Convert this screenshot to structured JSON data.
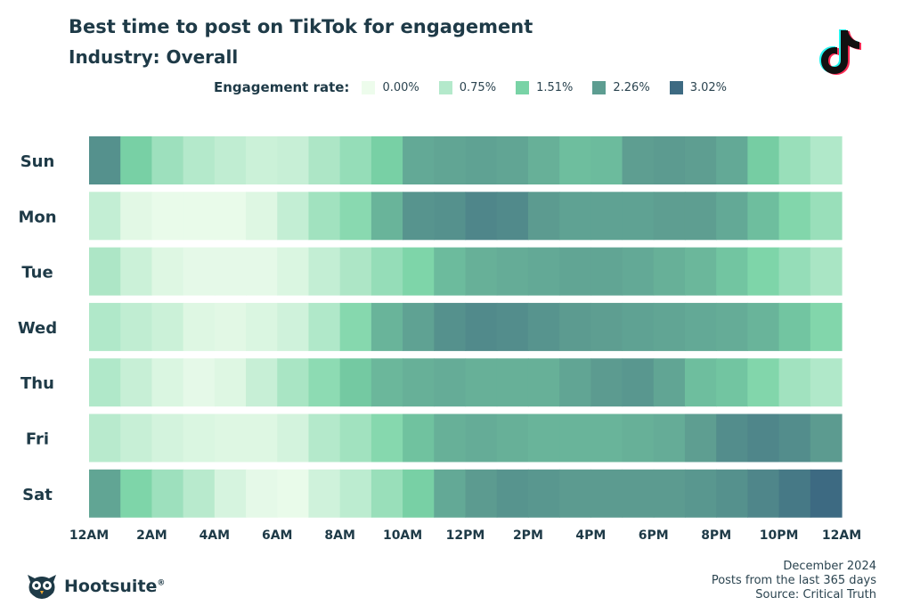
{
  "header": {
    "title": "Best time to post on TikTok for engagement",
    "subtitle": "Industry: Overall"
  },
  "legend": {
    "title": "Engagement rate:",
    "items": [
      {
        "label": "0.00%",
        "color": "#edfcec"
      },
      {
        "label": "0.75%",
        "color": "#b4e9cb"
      },
      {
        "label": "1.51%",
        "color": "#79d3a6"
      },
      {
        "label": "2.26%",
        "color": "#5d9d91"
      },
      {
        "label": "3.02%",
        "color": "#3d6a82"
      }
    ]
  },
  "footer": {
    "brand": "Hootsuite",
    "notes": [
      "December 2024",
      "Posts from the last 365 days",
      "Source: Critical Truth"
    ]
  },
  "icons": {
    "brand_logo": "tiktok-logo",
    "footer_logo": "hootsuite-owl-logo"
  },
  "chart_data": {
    "type": "heatmap",
    "title": "Best time to post on TikTok for engagement",
    "subtitle": "Industry: Overall",
    "rows": [
      "Sun",
      "Mon",
      "Tue",
      "Wed",
      "Thu",
      "Fri",
      "Sat"
    ],
    "x_tick_labels": [
      "12AM",
      "2AM",
      "4AM",
      "6AM",
      "8AM",
      "10AM",
      "12PM",
      "2PM",
      "4PM",
      "6PM",
      "8PM",
      "10PM",
      "12AM"
    ],
    "hours": 24,
    "value_unit": "%",
    "value_range": [
      0,
      3.02
    ],
    "values": [
      [
        2.45,
        1.55,
        1.05,
        0.75,
        0.6,
        0.45,
        0.5,
        0.85,
        1.15,
        1.55,
        2.1,
        2.15,
        2.2,
        2.15,
        2.0,
        1.8,
        1.85,
        2.25,
        2.3,
        2.25,
        2.1,
        1.6,
        1.1,
        0.8
      ],
      [
        0.55,
        0.15,
        0.05,
        0.05,
        0.05,
        0.2,
        0.55,
        1.0,
        1.3,
        1.95,
        2.4,
        2.45,
        2.6,
        2.55,
        2.3,
        2.2,
        2.2,
        2.2,
        2.25,
        2.25,
        2.1,
        1.8,
        1.4,
        1.1
      ],
      [
        0.85,
        0.45,
        0.2,
        0.1,
        0.1,
        0.1,
        0.25,
        0.55,
        0.85,
        1.15,
        1.45,
        1.85,
        2.0,
        2.05,
        2.1,
        2.15,
        2.15,
        2.1,
        2.0,
        1.9,
        1.7,
        1.45,
        1.15,
        0.9
      ],
      [
        0.8,
        0.6,
        0.45,
        0.2,
        0.15,
        0.25,
        0.4,
        0.8,
        1.35,
        1.95,
        2.2,
        2.45,
        2.55,
        2.5,
        2.4,
        2.3,
        2.25,
        2.2,
        2.15,
        2.1,
        2.05,
        1.95,
        1.7,
        1.4
      ],
      [
        0.8,
        0.5,
        0.25,
        0.1,
        0.2,
        0.5,
        0.9,
        1.25,
        1.65,
        1.9,
        2.0,
        2.05,
        2.0,
        2.0,
        2.0,
        2.15,
        2.3,
        2.35,
        2.15,
        1.8,
        1.7,
        1.4,
        1.0,
        0.8
      ],
      [
        0.7,
        0.5,
        0.35,
        0.25,
        0.2,
        0.2,
        0.35,
        0.75,
        1.0,
        1.35,
        1.75,
        2.0,
        2.05,
        2.0,
        1.95,
        1.95,
        1.95,
        2.0,
        2.05,
        2.25,
        2.5,
        2.6,
        2.5,
        2.3
      ],
      [
        2.15,
        1.45,
        1.05,
        0.7,
        0.3,
        0.1,
        0.05,
        0.4,
        0.65,
        1.1,
        1.55,
        2.1,
        2.3,
        2.4,
        2.35,
        2.3,
        2.3,
        2.3,
        2.3,
        2.35,
        2.45,
        2.6,
        2.8,
        3.02
      ]
    ]
  }
}
